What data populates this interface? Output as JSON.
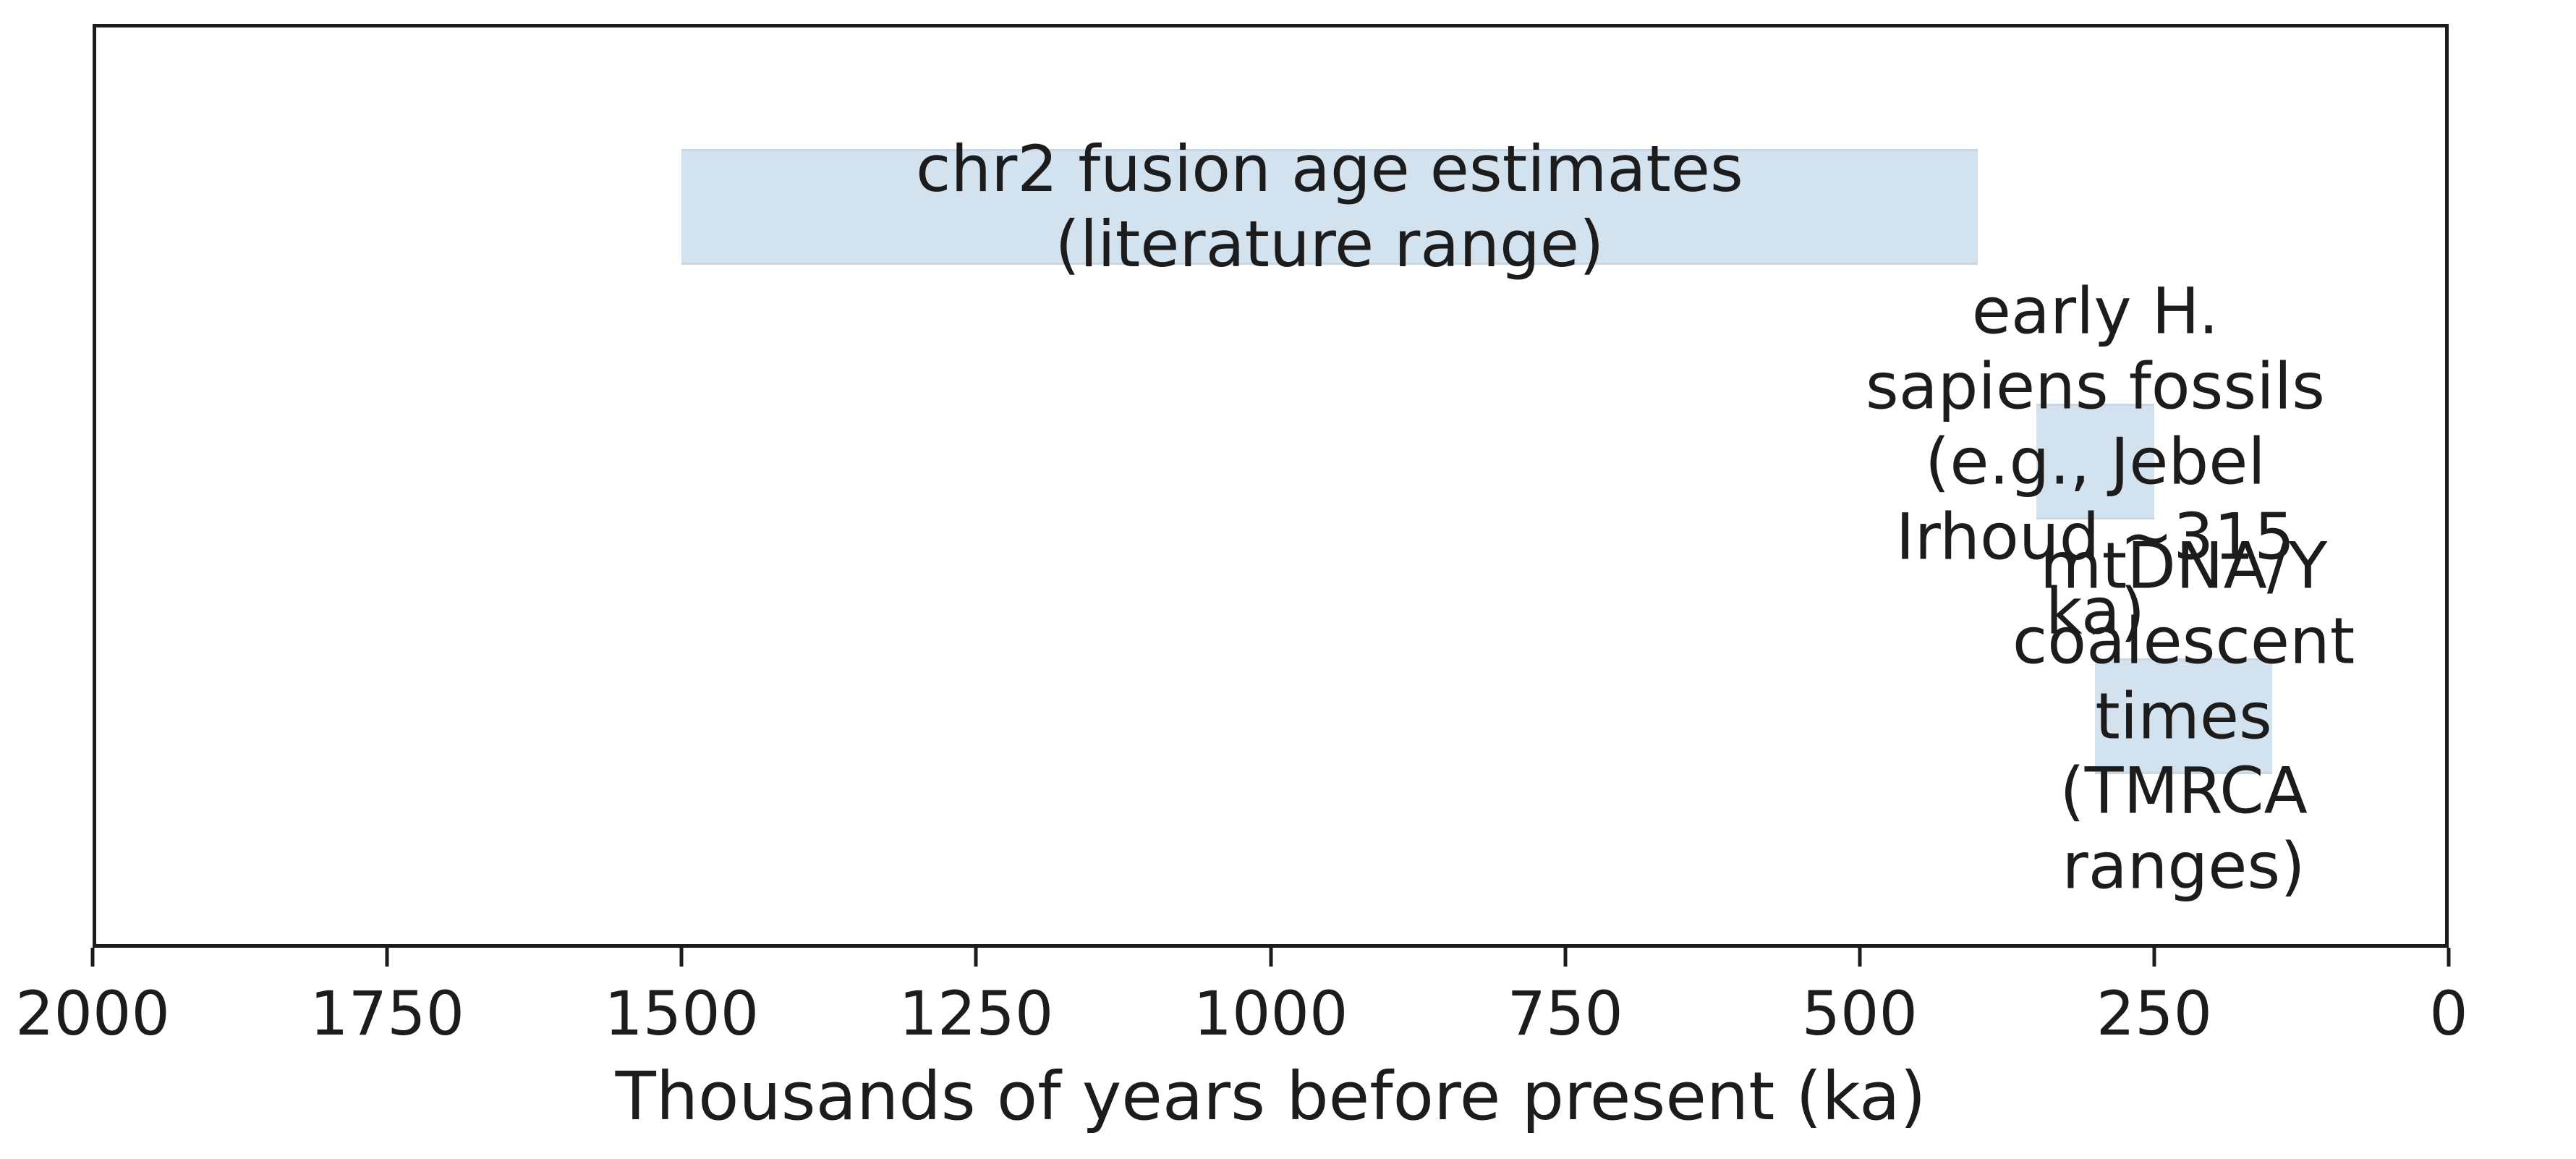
{
  "chart_data": {
    "type": "bar",
    "orientation": "horizontal-range",
    "title": "",
    "xlabel": "Thousands of years before present (ka)",
    "ylabel": "",
    "xlim": [
      2000,
      0
    ],
    "x_axis_reversed": true,
    "xticks": [
      2000,
      1750,
      1500,
      1250,
      1000,
      750,
      500,
      250,
      0
    ],
    "yticks": [],
    "grid": false,
    "legend": false,
    "ylim": [
      -0.91,
      2.72
    ],
    "bar_height": 0.455,
    "bar_color": "#d3e2ef",
    "bar_edge_color": "#c9d7e4",
    "text_color": "#1c1c1c",
    "spine_color": "#1c1c1c",
    "bars": [
      {
        "name": "chr2-fusion-age-estimates",
        "label": "chr2 fusion age estimates\n(literature range)",
        "start_ka": 1500,
        "end_ka": 400,
        "y": 2
      },
      {
        "name": "early-h-sapiens-fossils",
        "label": "early H. sapiens fossils\n(e.g., Jebel Irhoud ~315 ka)",
        "start_ka": 350,
        "end_ka": 250,
        "y": 1
      },
      {
        "name": "mtdna-y-coalescent-times",
        "label": "mtDNA/Y coalescent times\n(TMRCA ranges)",
        "start_ka": 300,
        "end_ka": 150,
        "y": 0
      }
    ]
  }
}
